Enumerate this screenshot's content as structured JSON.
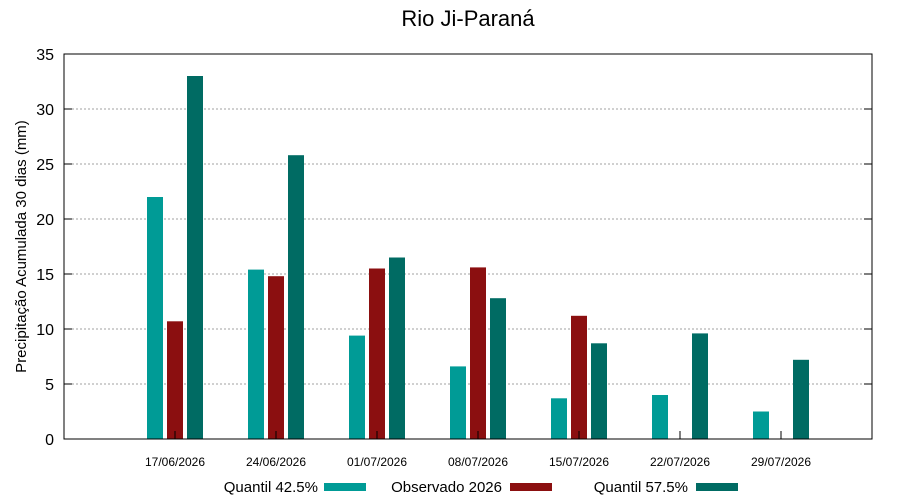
{
  "chart_data": {
    "type": "bar",
    "title": "Rio Ji-Paraná",
    "ylabel": "Precipitação Acumulada 30 dias (mm)",
    "xlabel": "",
    "ylim": [
      0,
      35
    ],
    "yticks": [
      0,
      5,
      10,
      15,
      20,
      25,
      30,
      35
    ],
    "grid": true,
    "legend_position": "bottom",
    "categories": [
      "17/06/2026",
      "24/06/2026",
      "01/07/2026",
      "08/07/2026",
      "15/07/2026",
      "22/07/2026",
      "29/07/2026"
    ],
    "series": [
      {
        "name": "Quantil 42.5%",
        "color": "#009b96",
        "values": [
          22.0,
          15.4,
          9.4,
          6.6,
          3.7,
          4.0,
          2.5
        ]
      },
      {
        "name": "Observado 2026",
        "color": "#8b0f10",
        "values": [
          10.7,
          14.8,
          15.5,
          15.6,
          11.2,
          null,
          null
        ]
      },
      {
        "name": "Quantil 57.5%",
        "color": "#006b63",
        "values": [
          33.0,
          25.8,
          16.5,
          12.8,
          8.7,
          9.6,
          7.2
        ]
      }
    ]
  }
}
